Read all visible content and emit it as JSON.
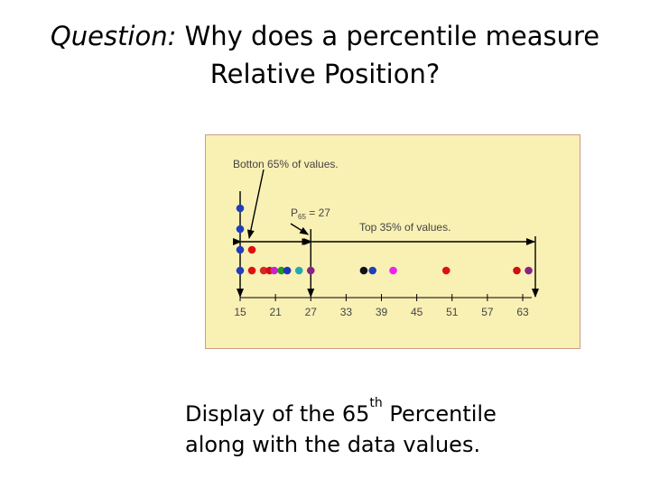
{
  "title": {
    "question_label": "Question:",
    "line1_text": "Why does a percentile measure",
    "line2_text": "Relative Position?"
  },
  "figure": {
    "background_color": "#f9f0b4",
    "border_color": "#cf9b86",
    "bottom_label": "Botton 65% of values.",
    "percentile_label_base": "P",
    "percentile_label_sub": "65",
    "percentile_label_rest": " = 27",
    "top_label": "Top 35% of values.",
    "percentile_value": 27,
    "ticks": [
      15,
      21,
      27,
      33,
      39,
      45,
      51,
      57,
      63
    ],
    "axis_range": [
      15,
      63
    ],
    "points": [
      {
        "x": 15,
        "level": 0,
        "color": "#1f3fbf"
      },
      {
        "x": 15,
        "level": 1,
        "color": "#1f3fbf"
      },
      {
        "x": 15,
        "level": 2,
        "color": "#1f3fbf"
      },
      {
        "x": 15,
        "level": 3,
        "color": "#1f3fbf"
      },
      {
        "x": 17,
        "level": 0,
        "color": "#dd1111"
      },
      {
        "x": 17,
        "level": 1,
        "color": "#dd1111"
      },
      {
        "x": 19,
        "level": 0,
        "color": "#dd2222"
      },
      {
        "x": 20,
        "level": 0,
        "color": "#cc1111"
      },
      {
        "x": 20.8,
        "level": 0,
        "color": "#cc22cc"
      },
      {
        "x": 22,
        "level": 0,
        "color": "#229922"
      },
      {
        "x": 23,
        "level": 0,
        "color": "#2233bb"
      },
      {
        "x": 25,
        "level": 0,
        "color": "#22aaaa"
      },
      {
        "x": 27,
        "level": 0,
        "color": "#882288"
      },
      {
        "x": 36,
        "level": 0,
        "color": "#111111"
      },
      {
        "x": 37.5,
        "level": 0,
        "color": "#1f3fbf"
      },
      {
        "x": 41,
        "level": 0,
        "color": "#ee22ee"
      },
      {
        "x": 50,
        "level": 0,
        "color": "#dd1111"
      },
      {
        "x": 62,
        "level": 0,
        "color": "#cc1111"
      },
      {
        "x": 64,
        "level": 0,
        "color": "#882288"
      }
    ]
  },
  "caption": {
    "line1_before": "Display of the 65",
    "line1_sup": "th",
    "line1_after": " Percentile",
    "line2": "along with the data values."
  }
}
